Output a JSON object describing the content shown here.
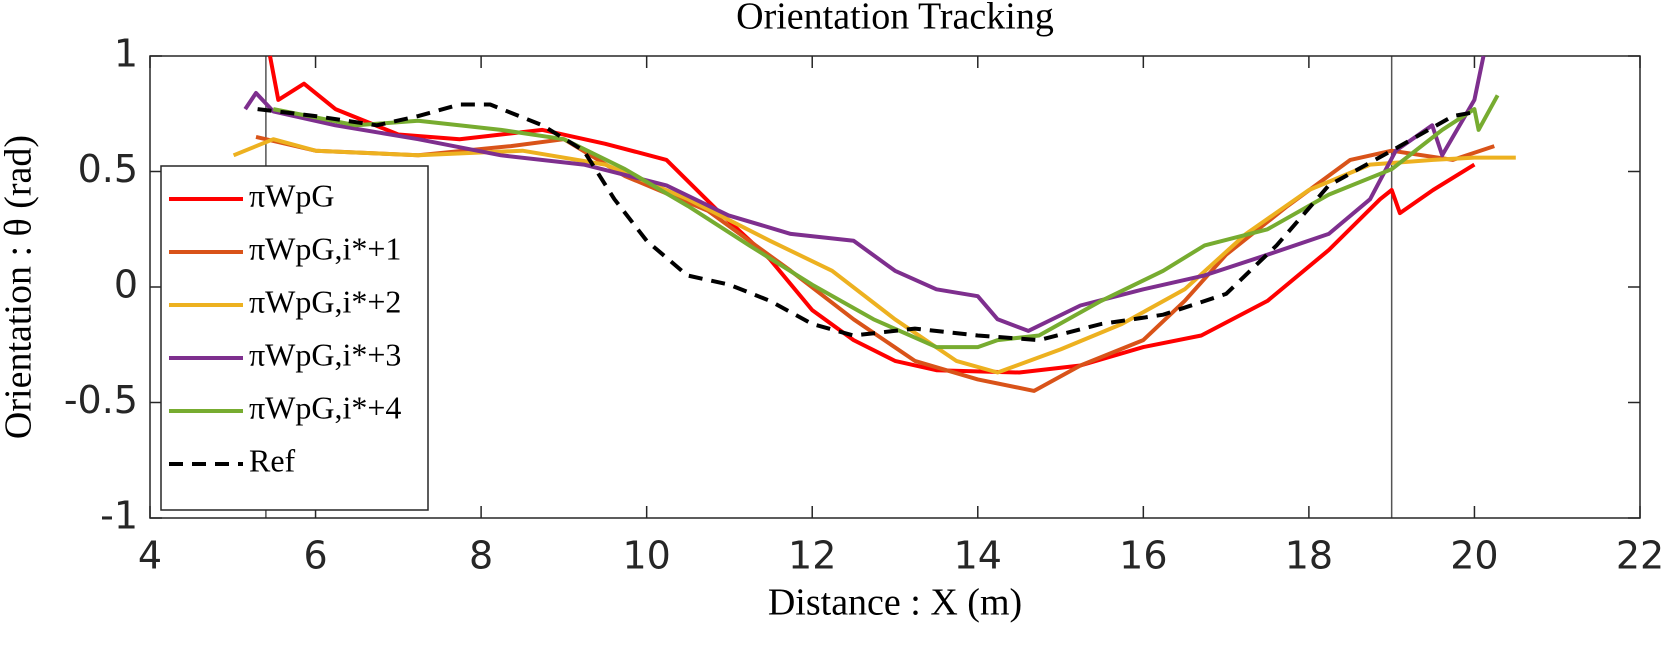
{
  "chart_data": {
    "type": "line",
    "title": "Orientation Tracking",
    "xlabel": "Distance : X (m)",
    "ylabel": "Orientation : θ (rad)",
    "xlim": [
      4,
      22
    ],
    "xticks": [
      4,
      6,
      8,
      10,
      12,
      14,
      16,
      18,
      20,
      22
    ],
    "ylim": [
      -1,
      1
    ],
    "yticks": [
      -1,
      -0.5,
      0,
      0.5,
      1
    ],
    "vlines": [
      5.4,
      19
    ],
    "legend": "left",
    "series": [
      {
        "name": "πWpG",
        "color": "#ff0000",
        "style": "solid",
        "x": [
          5.45,
          5.55,
          5.86,
          6.24,
          7.0,
          7.74,
          8.74,
          9.5,
          10.24,
          10.86,
          11.49,
          12.0,
          12.5,
          13.0,
          13.5,
          14.5,
          15.24,
          16.0,
          16.7,
          17.5,
          18.24,
          18.86,
          19.0,
          19.1,
          19.5,
          20.0
        ],
        "values": [
          1.0,
          0.81,
          0.88,
          0.77,
          0.66,
          0.64,
          0.68,
          0.62,
          0.55,
          0.33,
          0.12,
          -0.1,
          -0.23,
          -0.32,
          -0.36,
          -0.37,
          -0.34,
          -0.26,
          -0.21,
          -0.06,
          0.16,
          0.38,
          0.42,
          0.32,
          0.42,
          0.53
        ]
      },
      {
        "name": "πWpG,i*+1",
        "color": "#d95319",
        "style": "solid",
        "x": [
          5.28,
          6.0,
          7.24,
          8.36,
          9.0,
          9.74,
          10.74,
          11.74,
          12.5,
          13.24,
          14.0,
          14.68,
          15.24,
          16.0,
          16.5,
          17.0,
          17.74,
          18.5,
          19.0,
          19.74,
          20.24
        ],
        "values": [
          0.65,
          0.59,
          0.57,
          0.61,
          0.64,
          0.48,
          0.33,
          0.07,
          -0.14,
          -0.32,
          -0.4,
          -0.45,
          -0.34,
          -0.23,
          -0.06,
          0.14,
          0.35,
          0.55,
          0.59,
          0.55,
          0.61
        ]
      },
      {
        "name": "πWpG,i*+2",
        "color": "#edb120",
        "style": "solid",
        "x": [
          5.01,
          5.49,
          6.0,
          7.24,
          8.5,
          9.5,
          10.5,
          11.49,
          12.24,
          13.0,
          13.74,
          14.24,
          15.0,
          15.74,
          16.5,
          17.24,
          18.0,
          18.74,
          19.5,
          20.0,
          20.5
        ],
        "values": [
          0.57,
          0.64,
          0.59,
          0.57,
          0.59,
          0.53,
          0.38,
          0.2,
          0.07,
          -0.14,
          -0.32,
          -0.37,
          -0.27,
          -0.16,
          -0.01,
          0.23,
          0.42,
          0.53,
          0.55,
          0.56,
          0.56
        ]
      },
      {
        "name": "πWpG,i*+3",
        "color": "#7e2f8e",
        "style": "solid",
        "x": [
          5.15,
          5.28,
          5.49,
          6.24,
          7.24,
          8.24,
          9.24,
          10.24,
          10.99,
          11.74,
          12.5,
          13.0,
          13.5,
          14.0,
          14.24,
          14.61,
          15.24,
          16.0,
          16.74,
          17.5,
          18.24,
          18.74,
          19.05,
          19.49,
          19.61,
          20.0,
          20.11
        ],
        "values": [
          0.77,
          0.84,
          0.76,
          0.7,
          0.64,
          0.57,
          0.53,
          0.44,
          0.31,
          0.23,
          0.2,
          0.07,
          -0.01,
          -0.04,
          -0.14,
          -0.19,
          -0.08,
          -0.01,
          0.05,
          0.14,
          0.23,
          0.38,
          0.59,
          0.7,
          0.57,
          0.81,
          1.0
        ]
      },
      {
        "name": "πWpG,i*+4",
        "color": "#77ac30",
        "style": "solid",
        "x": [
          5.49,
          6.49,
          7.24,
          8.24,
          9.0,
          9.74,
          10.5,
          11.24,
          12.0,
          12.74,
          13.5,
          14.0,
          14.24,
          14.74,
          15.49,
          16.24,
          16.74,
          17.5,
          18.24,
          19.0,
          19.61,
          20.0,
          20.05,
          20.28
        ],
        "values": [
          0.77,
          0.7,
          0.72,
          0.68,
          0.64,
          0.51,
          0.35,
          0.18,
          0.01,
          -0.14,
          -0.26,
          -0.26,
          -0.23,
          -0.21,
          -0.06,
          0.07,
          0.18,
          0.25,
          0.4,
          0.51,
          0.68,
          0.77,
          0.68,
          0.83
        ]
      },
      {
        "name": "Ref",
        "color": "#000000",
        "style": "dashed",
        "x": [
          5.3,
          6.0,
          6.74,
          7.24,
          7.74,
          8.11,
          8.74,
          9.24,
          9.61,
          10.0,
          10.49,
          11.0,
          11.49,
          12.0,
          12.5,
          13.24,
          14.0,
          14.74,
          15.49,
          16.24,
          17.0,
          17.61,
          18.24,
          19.0,
          19.74,
          20.05
        ],
        "values": [
          0.77,
          0.74,
          0.7,
          0.74,
          0.79,
          0.79,
          0.7,
          0.59,
          0.38,
          0.2,
          0.05,
          0.01,
          -0.06,
          -0.16,
          -0.21,
          -0.18,
          -0.21,
          -0.23,
          -0.16,
          -0.12,
          -0.03,
          0.18,
          0.44,
          0.59,
          0.74,
          0.76
        ]
      }
    ]
  }
}
